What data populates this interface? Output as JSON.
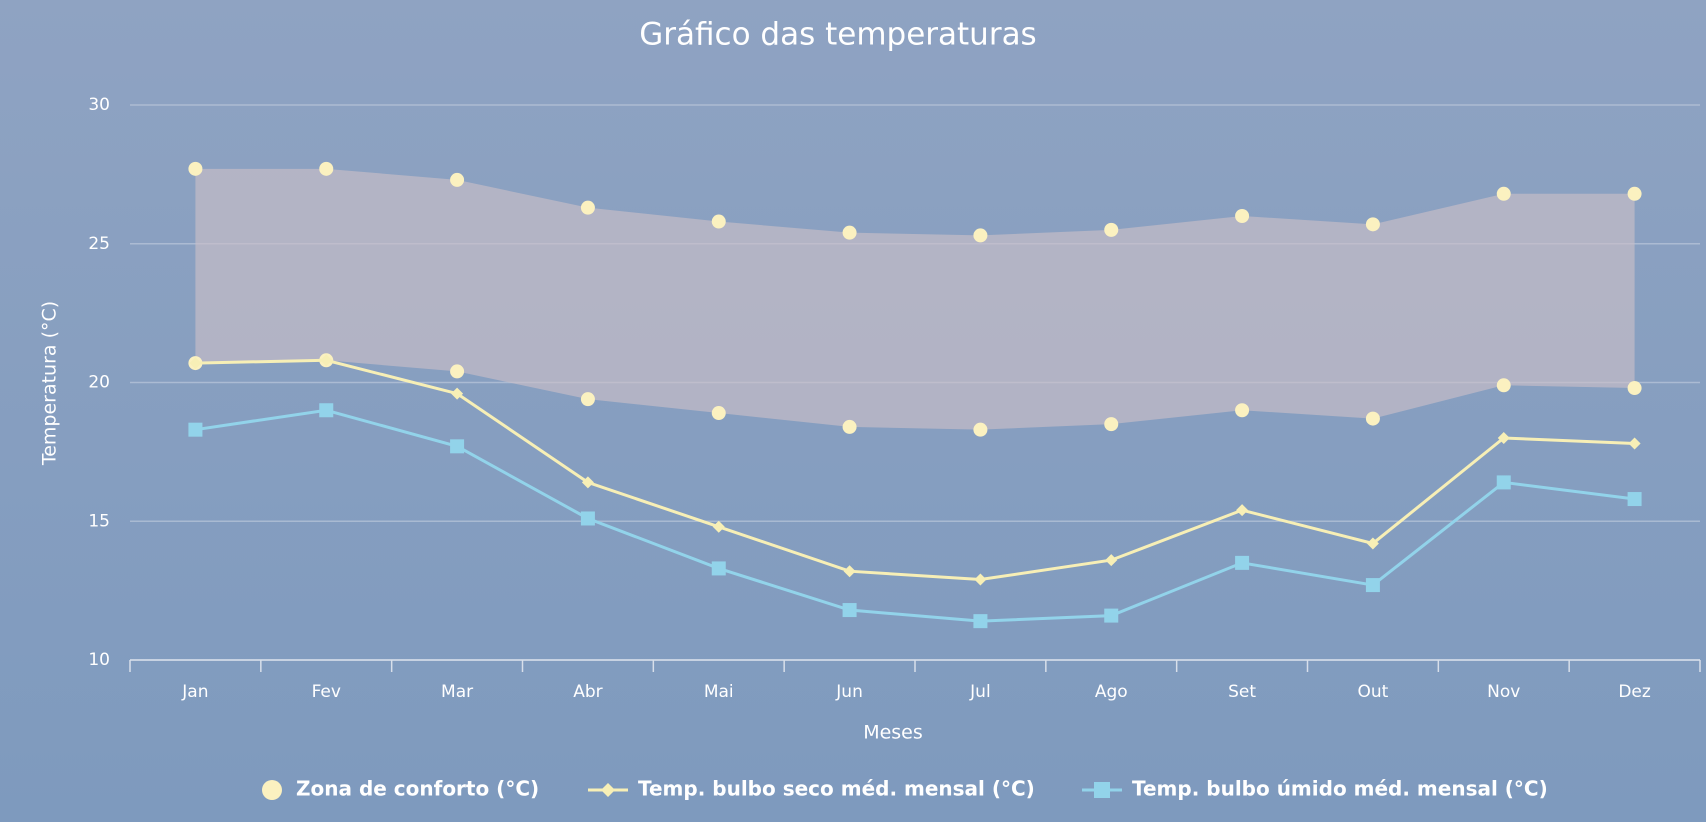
{
  "chart_data": {
    "type": "line",
    "title": "Gráfico das temperaturas",
    "x_label": "Meses",
    "y_label": "Temperatura (°C)",
    "categories": [
      "Jan",
      "Fev",
      "Mar",
      "Abr",
      "Mai",
      "Jun",
      "Jul",
      "Ago",
      "Set",
      "Out",
      "Nov",
      "Dez"
    ],
    "ylim": [
      10,
      30
    ],
    "yticks": [
      10,
      15,
      20,
      25,
      30
    ],
    "grid": true,
    "legend": "bottom",
    "series": [
      {
        "name": "Zona de conforto (°C)",
        "type": "arearange",
        "color": "#fbf1c0",
        "fill": "#c9bfc8",
        "high": [
          27.7,
          27.7,
          27.3,
          26.3,
          25.8,
          25.4,
          25.3,
          25.5,
          26.0,
          25.7,
          26.8,
          26.8
        ],
        "low": [
          20.7,
          20.8,
          20.4,
          19.4,
          18.9,
          18.4,
          18.3,
          18.5,
          19.0,
          18.7,
          19.9,
          19.8
        ]
      },
      {
        "name": "Temp. bulbo seco méd. mensal (°C)",
        "type": "line",
        "marker": "diamond",
        "color": "#f7efb6",
        "values": [
          20.7,
          20.8,
          19.6,
          16.4,
          14.8,
          13.2,
          12.9,
          13.6,
          15.4,
          14.2,
          18.0,
          17.8
        ]
      },
      {
        "name": "Temp. bulbo úmido méd. mensal (°C)",
        "type": "line",
        "marker": "square",
        "color": "#92d3ea",
        "values": [
          18.3,
          19.0,
          17.7,
          15.1,
          13.3,
          11.8,
          11.4,
          11.6,
          13.5,
          12.7,
          16.4,
          15.8
        ]
      }
    ]
  }
}
